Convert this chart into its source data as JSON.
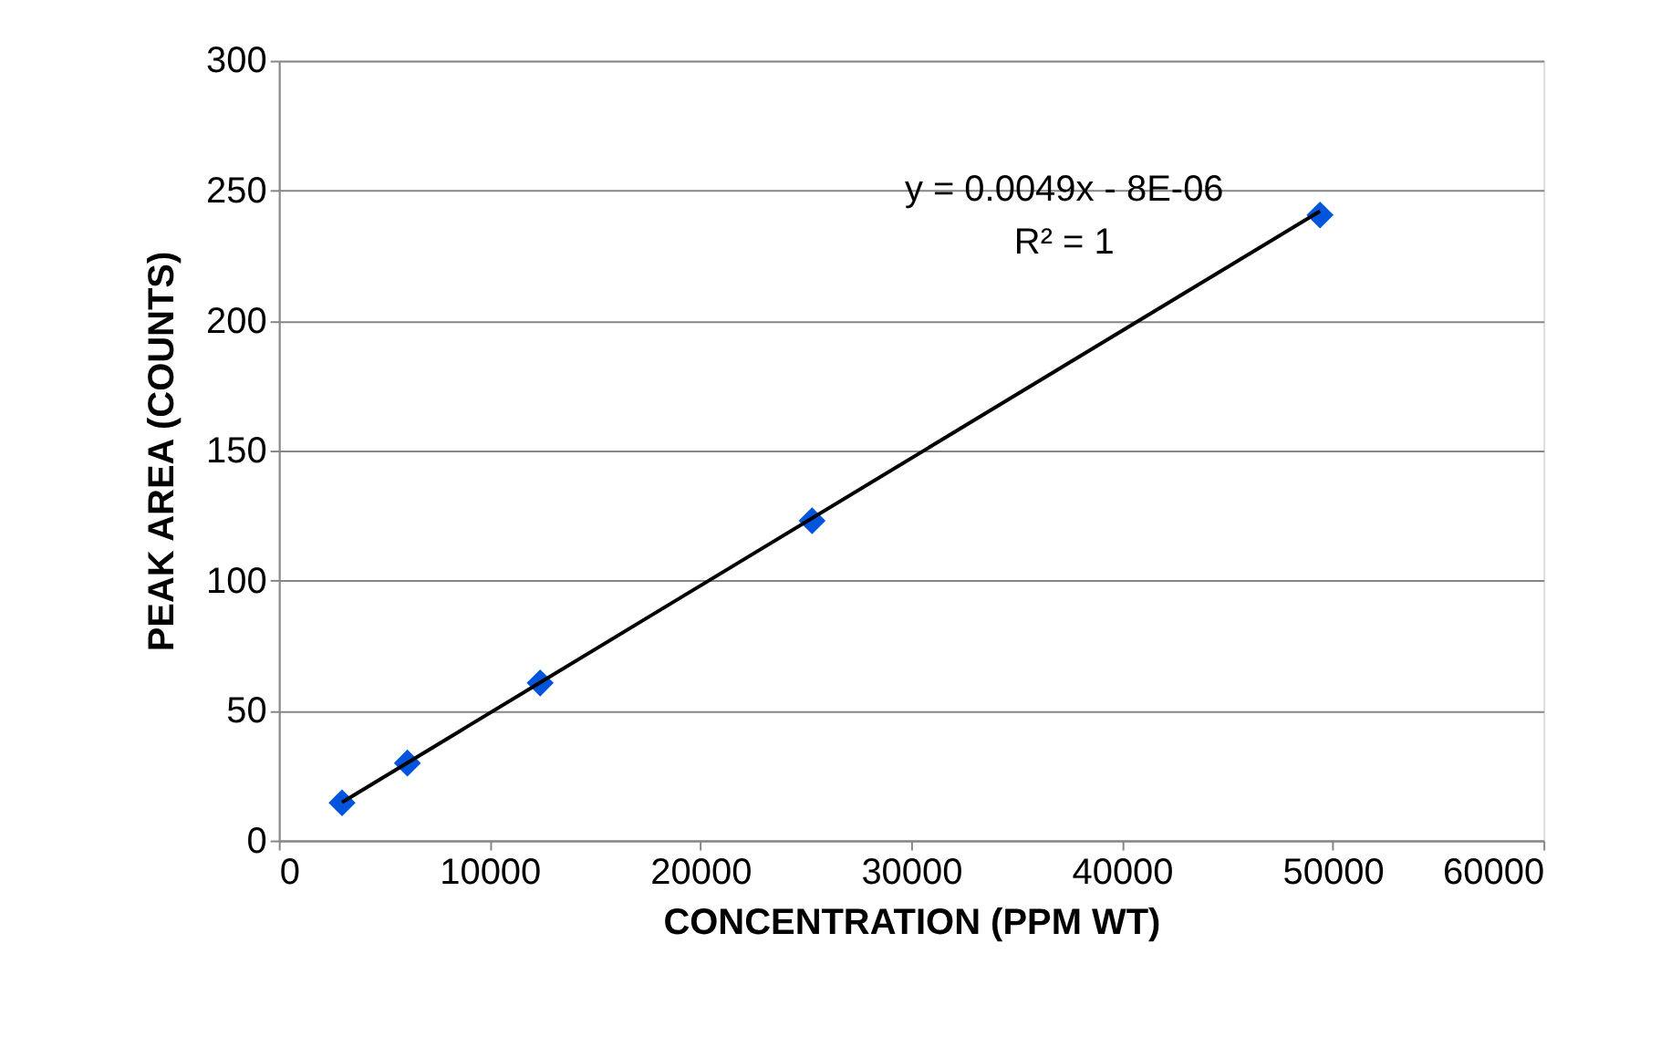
{
  "chart_data": {
    "type": "scatter",
    "xlabel": "CONCENTRATION (PPM WT)",
    "ylabel": "PEAK AREA (COUNTS)",
    "xlim": [
      0,
      60000
    ],
    "xticks": [
      0,
      10000,
      20000,
      30000,
      40000,
      50000,
      60000
    ],
    "ylim": [
      0,
      300
    ],
    "yticks": [
      0,
      50,
      100,
      150,
      200,
      250,
      300
    ],
    "grid": "y",
    "series": [
      {
        "color": "#0055dd",
        "marker": "diamond",
        "x": [
          3000,
          6100,
          12400,
          25300,
          49400
        ],
        "values": [
          14.5,
          29.8,
          60.6,
          123,
          240.6
        ]
      },
      {
        "type": "line",
        "color": "#000000",
        "marker": "none",
        "x": [
          3000,
          49400
        ],
        "values": [
          14.7,
          242.1
        ]
      }
    ],
    "annotations": [
      "y = 0.0049x - 8E-06",
      "R² = 1"
    ]
  }
}
